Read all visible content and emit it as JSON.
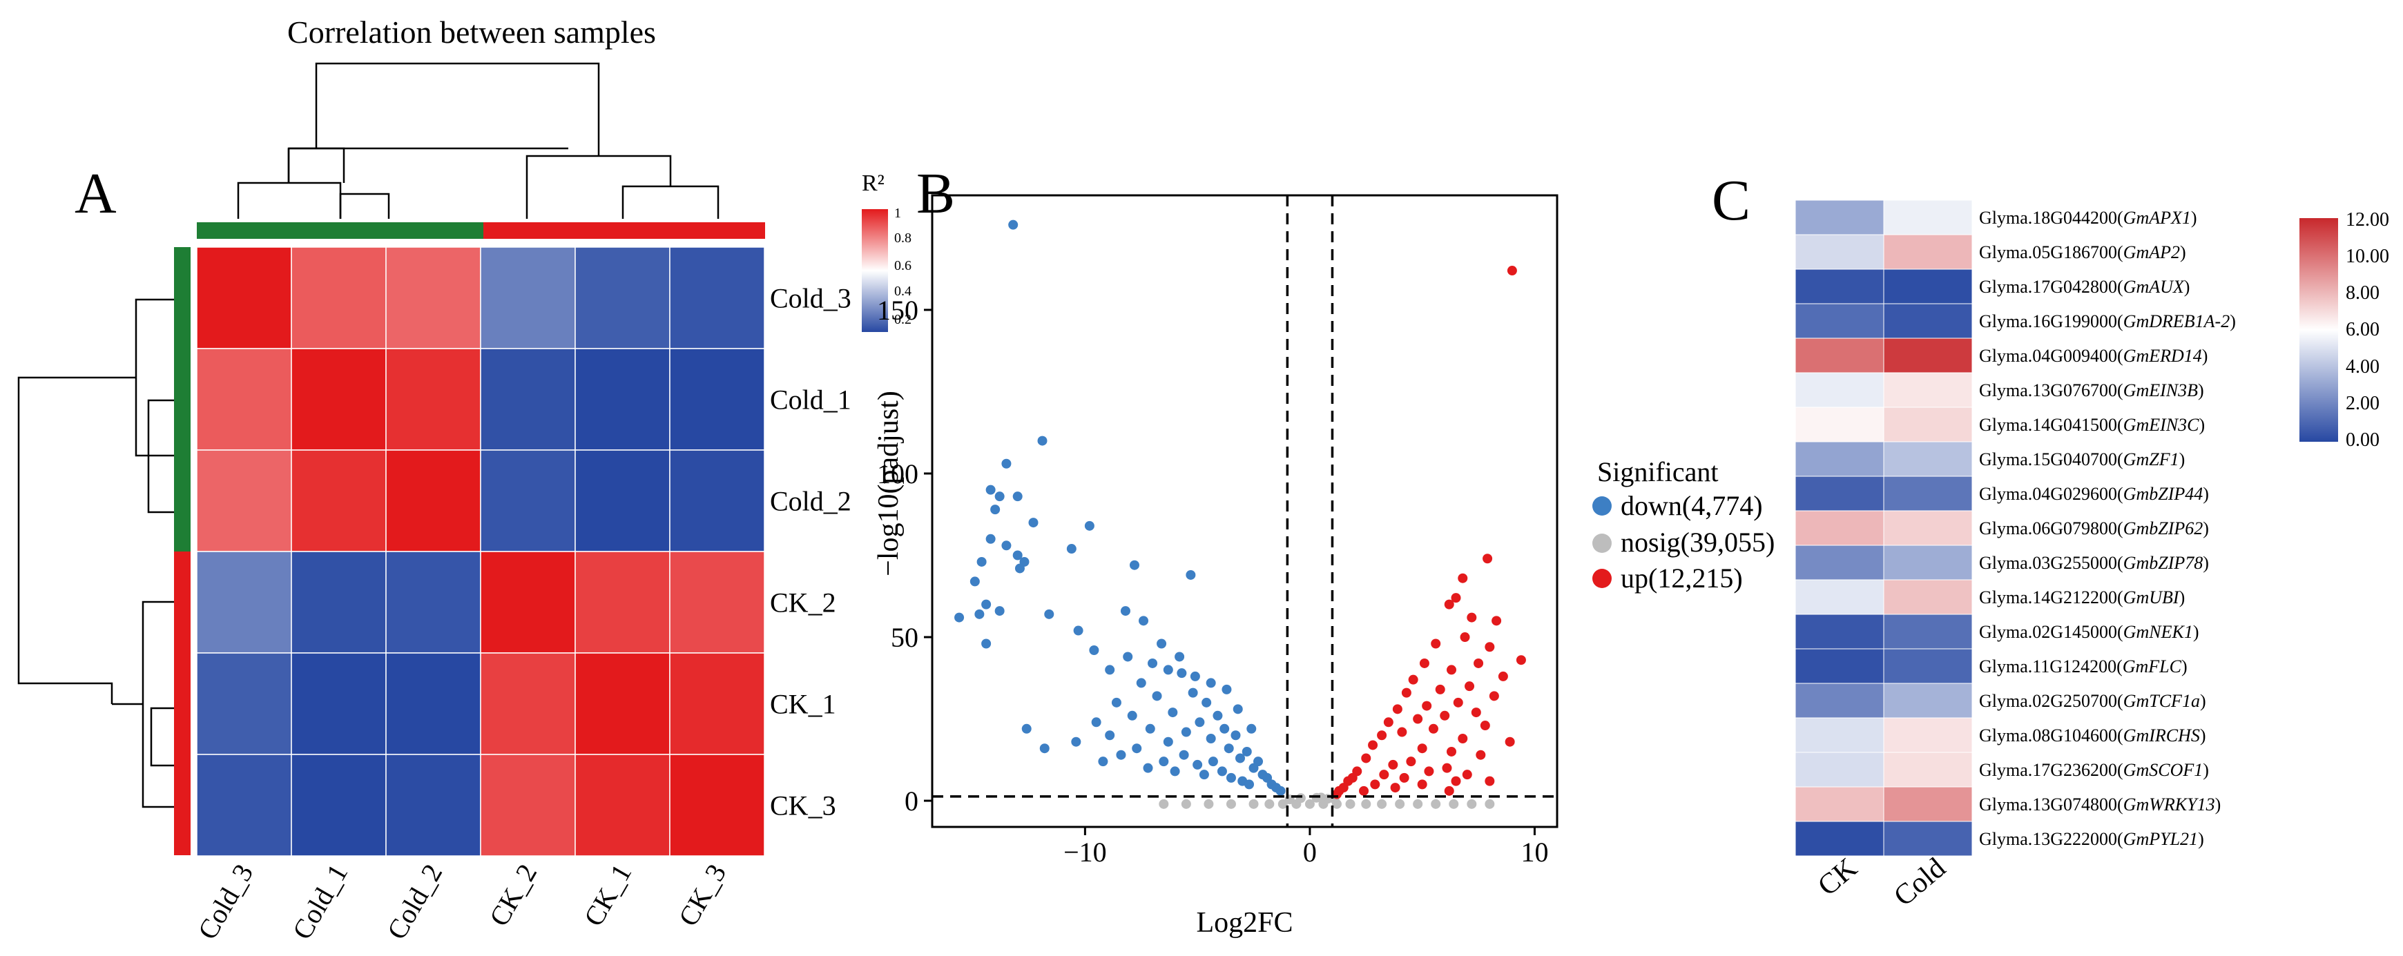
{
  "colors": {
    "red": "#E31A1C",
    "blue": "#2748A2",
    "green": "#1E7E34",
    "white": "#FFFFFF",
    "down": "#3D7FC4",
    "nosig": "#BDBDBD",
    "up": "#E31A1C"
  },
  "panelA": {
    "label": "A",
    "title": "Correlation between samples",
    "legend": {
      "title": "R²",
      "ticks": [
        "1",
        "0.8",
        "0.6",
        "0.4",
        "0.2"
      ]
    }
  },
  "panelB": {
    "label": "B",
    "legend_title": "Significant",
    "legend_items": [
      "down(4,774)",
      "nosig(39,055)",
      "up(12,215)"
    ]
  },
  "panelC": {
    "label": "C",
    "legend_ticks": [
      "12.00",
      "10.00",
      "8.00",
      "6.00",
      "4.00",
      "2.00",
      "0.00"
    ]
  },
  "chart_data": [
    {
      "type": "heatmap",
      "title": "Correlation between samples",
      "row_labels": [
        "Cold_3",
        "Cold_1",
        "Cold_2",
        "CK_2",
        "CK_1",
        "CK_3"
      ],
      "col_labels": [
        "Cold_3",
        "Cold_1",
        "Cold_2",
        "CK_2",
        "CK_1",
        "CK_3"
      ],
      "values": [
        [
          1.0,
          0.88,
          0.86,
          0.28,
          0.2,
          0.18
        ],
        [
          0.88,
          1.0,
          0.96,
          0.17,
          0.14,
          0.15
        ],
        [
          0.86,
          0.96,
          1.0,
          0.18,
          0.15,
          0.16
        ],
        [
          0.28,
          0.17,
          0.18,
          1.0,
          0.93,
          0.91
        ],
        [
          0.2,
          0.14,
          0.15,
          0.93,
          1.0,
          0.97
        ],
        [
          0.18,
          0.15,
          0.16,
          0.91,
          0.97,
          1.0
        ]
      ],
      "groups": [
        {
          "members": [
            "Cold_3",
            "Cold_1",
            "Cold_2"
          ],
          "color": "#1E7E34"
        },
        {
          "members": [
            "CK_2",
            "CK_1",
            "CK_3"
          ],
          "color": "#E31A1C"
        }
      ],
      "colorbar": {
        "label": "R²",
        "range": [
          0.15,
          1
        ],
        "ticks": [
          1,
          0.8,
          0.6,
          0.4,
          0.2
        ]
      }
    },
    {
      "type": "scatter",
      "xlabel": "Log2FC",
      "ylabel": "−log10(padjust)",
      "xlim": [
        -16.8,
        11
      ],
      "ylim": [
        -8,
        185
      ],
      "xticks": [
        -10,
        0,
        10
      ],
      "yticks": [
        0,
        50,
        100,
        150
      ],
      "thresholds": {
        "vertical": [
          -1,
          1
        ],
        "horizontal": 1.3
      },
      "series": [
        {
          "name": "down(4,774)",
          "color": "#3D7FC4",
          "points": [
            [
              -13.2,
              176
            ],
            [
              -11.9,
              110
            ],
            [
              -13.5,
              103
            ],
            [
              -14.2,
              95
            ],
            [
              -13.8,
              93
            ],
            [
              -13.0,
              93
            ],
            [
              -14.0,
              89
            ],
            [
              -12.3,
              85
            ],
            [
              -9.8,
              84
            ],
            [
              -14.2,
              80
            ],
            [
              -13.5,
              78
            ],
            [
              -13.0,
              75
            ],
            [
              -10.6,
              77
            ],
            [
              -12.7,
              73
            ],
            [
              -14.6,
              73
            ],
            [
              -12.9,
              71
            ],
            [
              -14.9,
              67
            ],
            [
              -7.8,
              72
            ],
            [
              -5.3,
              69
            ],
            [
              -14.4,
              60
            ],
            [
              -13.8,
              58
            ],
            [
              -11.6,
              57
            ],
            [
              -15.6,
              56
            ],
            [
              -14.7,
              57
            ],
            [
              -8.2,
              58
            ],
            [
              -7.4,
              55
            ],
            [
              -10.3,
              52
            ],
            [
              -14.4,
              48
            ],
            [
              -9.6,
              46
            ],
            [
              -6.6,
              48
            ],
            [
              -12.6,
              22
            ],
            [
              -11.8,
              16
            ],
            [
              -10.4,
              18
            ],
            [
              -9.5,
              24
            ],
            [
              -8.9,
              20
            ],
            [
              -8.6,
              30
            ],
            [
              -7.9,
              26
            ],
            [
              -7.5,
              36
            ],
            [
              -7.1,
              22
            ],
            [
              -6.8,
              32
            ],
            [
              -6.3,
              18
            ],
            [
              -6.1,
              27
            ],
            [
              -5.7,
              39
            ],
            [
              -5.5,
              21
            ],
            [
              -5.2,
              33
            ],
            [
              -4.9,
              24
            ],
            [
              -4.6,
              30
            ],
            [
              -4.4,
              19
            ],
            [
              -4.1,
              26
            ],
            [
              -3.8,
              22
            ],
            [
              -3.6,
              16
            ],
            [
              -3.3,
              20
            ],
            [
              -3.1,
              13
            ],
            [
              -2.8,
              15
            ],
            [
              -2.5,
              10
            ],
            [
              -2.3,
              12
            ],
            [
              -2.1,
              8
            ],
            [
              -1.9,
              7
            ],
            [
              -1.7,
              5
            ],
            [
              -1.5,
              4
            ],
            [
              -1.3,
              3
            ],
            [
              -9.2,
              12
            ],
            [
              -8.4,
              14
            ],
            [
              -7.7,
              16
            ],
            [
              -7.2,
              10
            ],
            [
              -6.5,
              12
            ],
            [
              -6.0,
              9
            ],
            [
              -5.6,
              14
            ],
            [
              -5.0,
              11
            ],
            [
              -4.7,
              8
            ],
            [
              -4.3,
              12
            ],
            [
              -3.9,
              9
            ],
            [
              -3.5,
              7
            ],
            [
              -3.0,
              6
            ],
            [
              -2.7,
              5
            ],
            [
              -8.9,
              40
            ],
            [
              -8.1,
              44
            ],
            [
              -7.0,
              42
            ],
            [
              -6.3,
              40
            ],
            [
              -5.8,
              44
            ],
            [
              -5.1,
              38
            ],
            [
              -4.4,
              36
            ],
            [
              -3.7,
              34
            ],
            [
              -3.2,
              28
            ],
            [
              -2.6,
              22
            ]
          ]
        },
        {
          "name": "nosig(39,055)",
          "color": "#BDBDBD",
          "points": [
            [
              -6.5,
              -1
            ],
            [
              -5.5,
              -1
            ],
            [
              -4.5,
              -1
            ],
            [
              -3.5,
              -1
            ],
            [
              -2.5,
              -1
            ],
            [
              -1.8,
              -1
            ],
            [
              -1.2,
              -1
            ],
            [
              -0.6,
              -1
            ],
            [
              0,
              -1
            ],
            [
              0.6,
              -1
            ],
            [
              1.2,
              -1
            ],
            [
              1.8,
              -1
            ],
            [
              2.5,
              -1
            ],
            [
              3.2,
              -1
            ],
            [
              4.0,
              -1
            ],
            [
              4.8,
              -1
            ],
            [
              5.6,
              -1
            ],
            [
              6.4,
              -1
            ],
            [
              7.2,
              -1
            ],
            [
              8.0,
              -1
            ],
            [
              -0.4,
              0.8
            ],
            [
              0.3,
              0.9
            ],
            [
              0.8,
              0.6
            ],
            [
              -0.9,
              0.4
            ],
            [
              1.1,
              0.5
            ],
            [
              0.5,
              1.0
            ]
          ]
        },
        {
          "name": "up(12,215)",
          "color": "#E31A1C",
          "points": [
            [
              9.0,
              162
            ],
            [
              7.9,
              74
            ],
            [
              6.8,
              68
            ],
            [
              6.5,
              62
            ],
            [
              6.2,
              60
            ],
            [
              7.2,
              56
            ],
            [
              8.3,
              55
            ],
            [
              6.9,
              50
            ],
            [
              5.6,
              48
            ],
            [
              8.0,
              47
            ],
            [
              9.4,
              43
            ],
            [
              7.5,
              42
            ],
            [
              5.1,
              42
            ],
            [
              6.3,
              40
            ],
            [
              8.6,
              38
            ],
            [
              4.6,
              37
            ],
            [
              7.1,
              35
            ],
            [
              5.8,
              34
            ],
            [
              4.3,
              33
            ],
            [
              8.2,
              32
            ],
            [
              6.6,
              30
            ],
            [
              5.2,
              29
            ],
            [
              3.9,
              28
            ],
            [
              7.4,
              27
            ],
            [
              6.0,
              26
            ],
            [
              4.8,
              25
            ],
            [
              3.5,
              24
            ],
            [
              7.8,
              23
            ],
            [
              5.5,
              22
            ],
            [
              4.1,
              21
            ],
            [
              3.2,
              20
            ],
            [
              6.8,
              19
            ],
            [
              8.9,
              18
            ],
            [
              2.8,
              17
            ],
            [
              5.0,
              16
            ],
            [
              6.3,
              15
            ],
            [
              7.6,
              14
            ],
            [
              2.5,
              13
            ],
            [
              4.5,
              12
            ],
            [
              3.7,
              11
            ],
            [
              6.1,
              10
            ],
            [
              2.1,
              9
            ],
            [
              5.3,
              9
            ],
            [
              7.0,
              8
            ],
            [
              3.3,
              8
            ],
            [
              1.9,
              7
            ],
            [
              4.2,
              7
            ],
            [
              6.5,
              6
            ],
            [
              1.7,
              6
            ],
            [
              2.9,
              5
            ],
            [
              5.0,
              5
            ],
            [
              1.5,
              4
            ],
            [
              3.8,
              4
            ],
            [
              1.3,
              3
            ],
            [
              2.4,
              3
            ],
            [
              6.2,
              3
            ],
            [
              8.0,
              6
            ],
            [
              1.2,
              2
            ]
          ]
        }
      ]
    },
    {
      "type": "heatmap",
      "columns": [
        "CK",
        "Cold"
      ],
      "rows": [
        {
          "id": "Glyma.18G044200",
          "gene": "GmAPX1",
          "values": [
            3.2,
            5.5
          ]
        },
        {
          "id": "Glyma.05G186700",
          "gene": "GmAP2",
          "values": [
            4.8,
            8.0
          ]
        },
        {
          "id": "Glyma.17G042800",
          "gene": "GmAUX",
          "values": [
            0.4,
            0.2
          ]
        },
        {
          "id": "Glyma.16G199000",
          "gene": "GmDREB1A-2",
          "values": [
            1.2,
            0.5
          ]
        },
        {
          "id": "Glyma.04G009400",
          "gene": "GmERD14",
          "values": [
            10.0,
            11.5
          ]
        },
        {
          "id": "Glyma.13G076700",
          "gene": "GmEIN3B",
          "values": [
            5.4,
            6.7
          ]
        },
        {
          "id": "Glyma.14G041500",
          "gene": "GmEIN3C",
          "values": [
            6.3,
            7.1
          ]
        },
        {
          "id": "Glyma.15G040700",
          "gene": "GmZF1",
          "values": [
            3.0,
            4.0
          ]
        },
        {
          "id": "Glyma.04G029600",
          "gene": "GmbZIP44",
          "values": [
            0.8,
            1.5
          ]
        },
        {
          "id": "Glyma.06G079800",
          "gene": "GmbZIP62",
          "values": [
            8.0,
            7.3
          ]
        },
        {
          "id": "Glyma.03G255000",
          "gene": "GmbZIP78",
          "values": [
            2.2,
            3.3
          ]
        },
        {
          "id": "Glyma.14G212200",
          "gene": "GmUBI",
          "values": [
            5.2,
            7.7
          ]
        },
        {
          "id": "Glyma.02G145000",
          "gene": "GmNEK1",
          "values": [
            0.5,
            1.3
          ]
        },
        {
          "id": "Glyma.11G124200",
          "gene": "GmFLC",
          "values": [
            0.3,
            1.0
          ]
        },
        {
          "id": "Glyma.02G250700",
          "gene": "GmTCF1a",
          "values": [
            2.0,
            3.5
          ]
        },
        {
          "id": "Glyma.08G104600",
          "gene": "GmIRCHS",
          "values": [
            5.0,
            6.8
          ]
        },
        {
          "id": "Glyma.17G236200",
          "gene": "GmSCOF1",
          "values": [
            4.9,
            6.9
          ]
        },
        {
          "id": "Glyma.13G074800",
          "gene": "GmWRKY13",
          "values": [
            7.8,
            9.0
          ]
        },
        {
          "id": "Glyma.13G222000",
          "gene": "GmPYL21",
          "values": [
            0.2,
            0.9
          ]
        }
      ],
      "colorbar": {
        "range": [
          0,
          12
        ],
        "ticks": [
          12,
          10,
          8,
          6,
          4,
          2,
          0
        ]
      }
    }
  ]
}
